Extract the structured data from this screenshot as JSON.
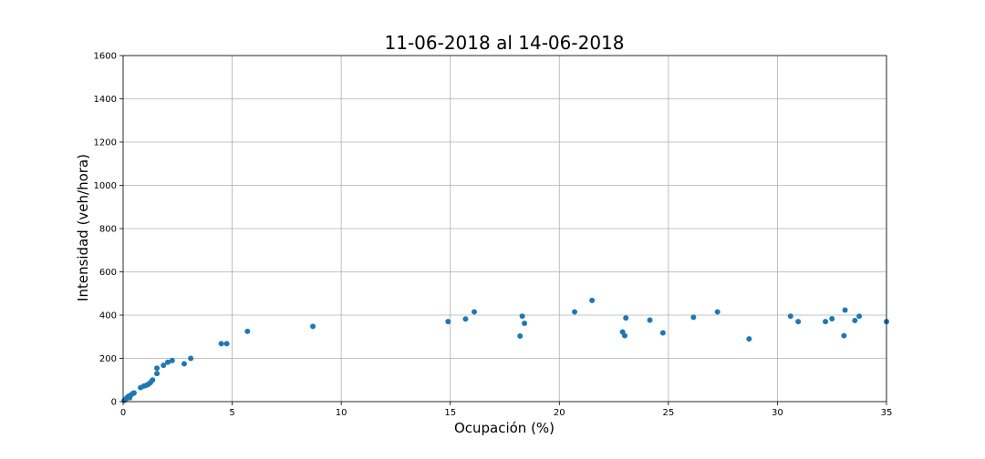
{
  "chart_data": {
    "type": "scatter",
    "title": "11-06-2018 al 14-06-2018",
    "xlabel": "Ocupación (%)",
    "ylabel": "Intensidad (veh/hora)",
    "xlim": [
      0,
      35
    ],
    "ylim": [
      0,
      1600
    ],
    "xticks": [
      0,
      5,
      10,
      15,
      20,
      25,
      30,
      35
    ],
    "yticks": [
      0,
      200,
      400,
      600,
      800,
      1000,
      1200,
      1400,
      1600
    ],
    "grid": true,
    "marker_color": "#1f77b4",
    "points": [
      {
        "x": 0.05,
        "y": 5
      },
      {
        "x": 0.1,
        "y": 10
      },
      {
        "x": 0.15,
        "y": 15
      },
      {
        "x": 0.2,
        "y": 20
      },
      {
        "x": 0.25,
        "y": 25
      },
      {
        "x": 0.3,
        "y": 18
      },
      {
        "x": 0.35,
        "y": 30
      },
      {
        "x": 0.45,
        "y": 38
      },
      {
        "x": 0.5,
        "y": 40
      },
      {
        "x": 0.8,
        "y": 65
      },
      {
        "x": 0.95,
        "y": 72
      },
      {
        "x": 1.05,
        "y": 75
      },
      {
        "x": 1.15,
        "y": 80
      },
      {
        "x": 1.25,
        "y": 88
      },
      {
        "x": 1.35,
        "y": 100
      },
      {
        "x": 1.55,
        "y": 130
      },
      {
        "x": 1.55,
        "y": 155
      },
      {
        "x": 1.85,
        "y": 168
      },
      {
        "x": 2.05,
        "y": 182
      },
      {
        "x": 2.25,
        "y": 190
      },
      {
        "x": 2.8,
        "y": 175
      },
      {
        "x": 3.1,
        "y": 200
      },
      {
        "x": 4.5,
        "y": 268
      },
      {
        "x": 4.75,
        "y": 268
      },
      {
        "x": 5.7,
        "y": 325
      },
      {
        "x": 8.7,
        "y": 348
      },
      {
        "x": 14.9,
        "y": 370
      },
      {
        "x": 15.7,
        "y": 382
      },
      {
        "x": 16.1,
        "y": 415
      },
      {
        "x": 18.2,
        "y": 303
      },
      {
        "x": 18.3,
        "y": 395
      },
      {
        "x": 18.4,
        "y": 362
      },
      {
        "x": 20.7,
        "y": 415
      },
      {
        "x": 21.5,
        "y": 468
      },
      {
        "x": 22.9,
        "y": 322
      },
      {
        "x": 23.0,
        "y": 305
      },
      {
        "x": 23.05,
        "y": 387
      },
      {
        "x": 24.15,
        "y": 377
      },
      {
        "x": 24.75,
        "y": 318
      },
      {
        "x": 26.15,
        "y": 390
      },
      {
        "x": 27.25,
        "y": 415
      },
      {
        "x": 28.7,
        "y": 290
      },
      {
        "x": 30.6,
        "y": 395
      },
      {
        "x": 30.95,
        "y": 370
      },
      {
        "x": 32.2,
        "y": 370
      },
      {
        "x": 32.5,
        "y": 383
      },
      {
        "x": 33.05,
        "y": 305
      },
      {
        "x": 33.1,
        "y": 423
      },
      {
        "x": 33.55,
        "y": 375
      },
      {
        "x": 33.75,
        "y": 395
      },
      {
        "x": 35.0,
        "y": 370
      }
    ]
  }
}
